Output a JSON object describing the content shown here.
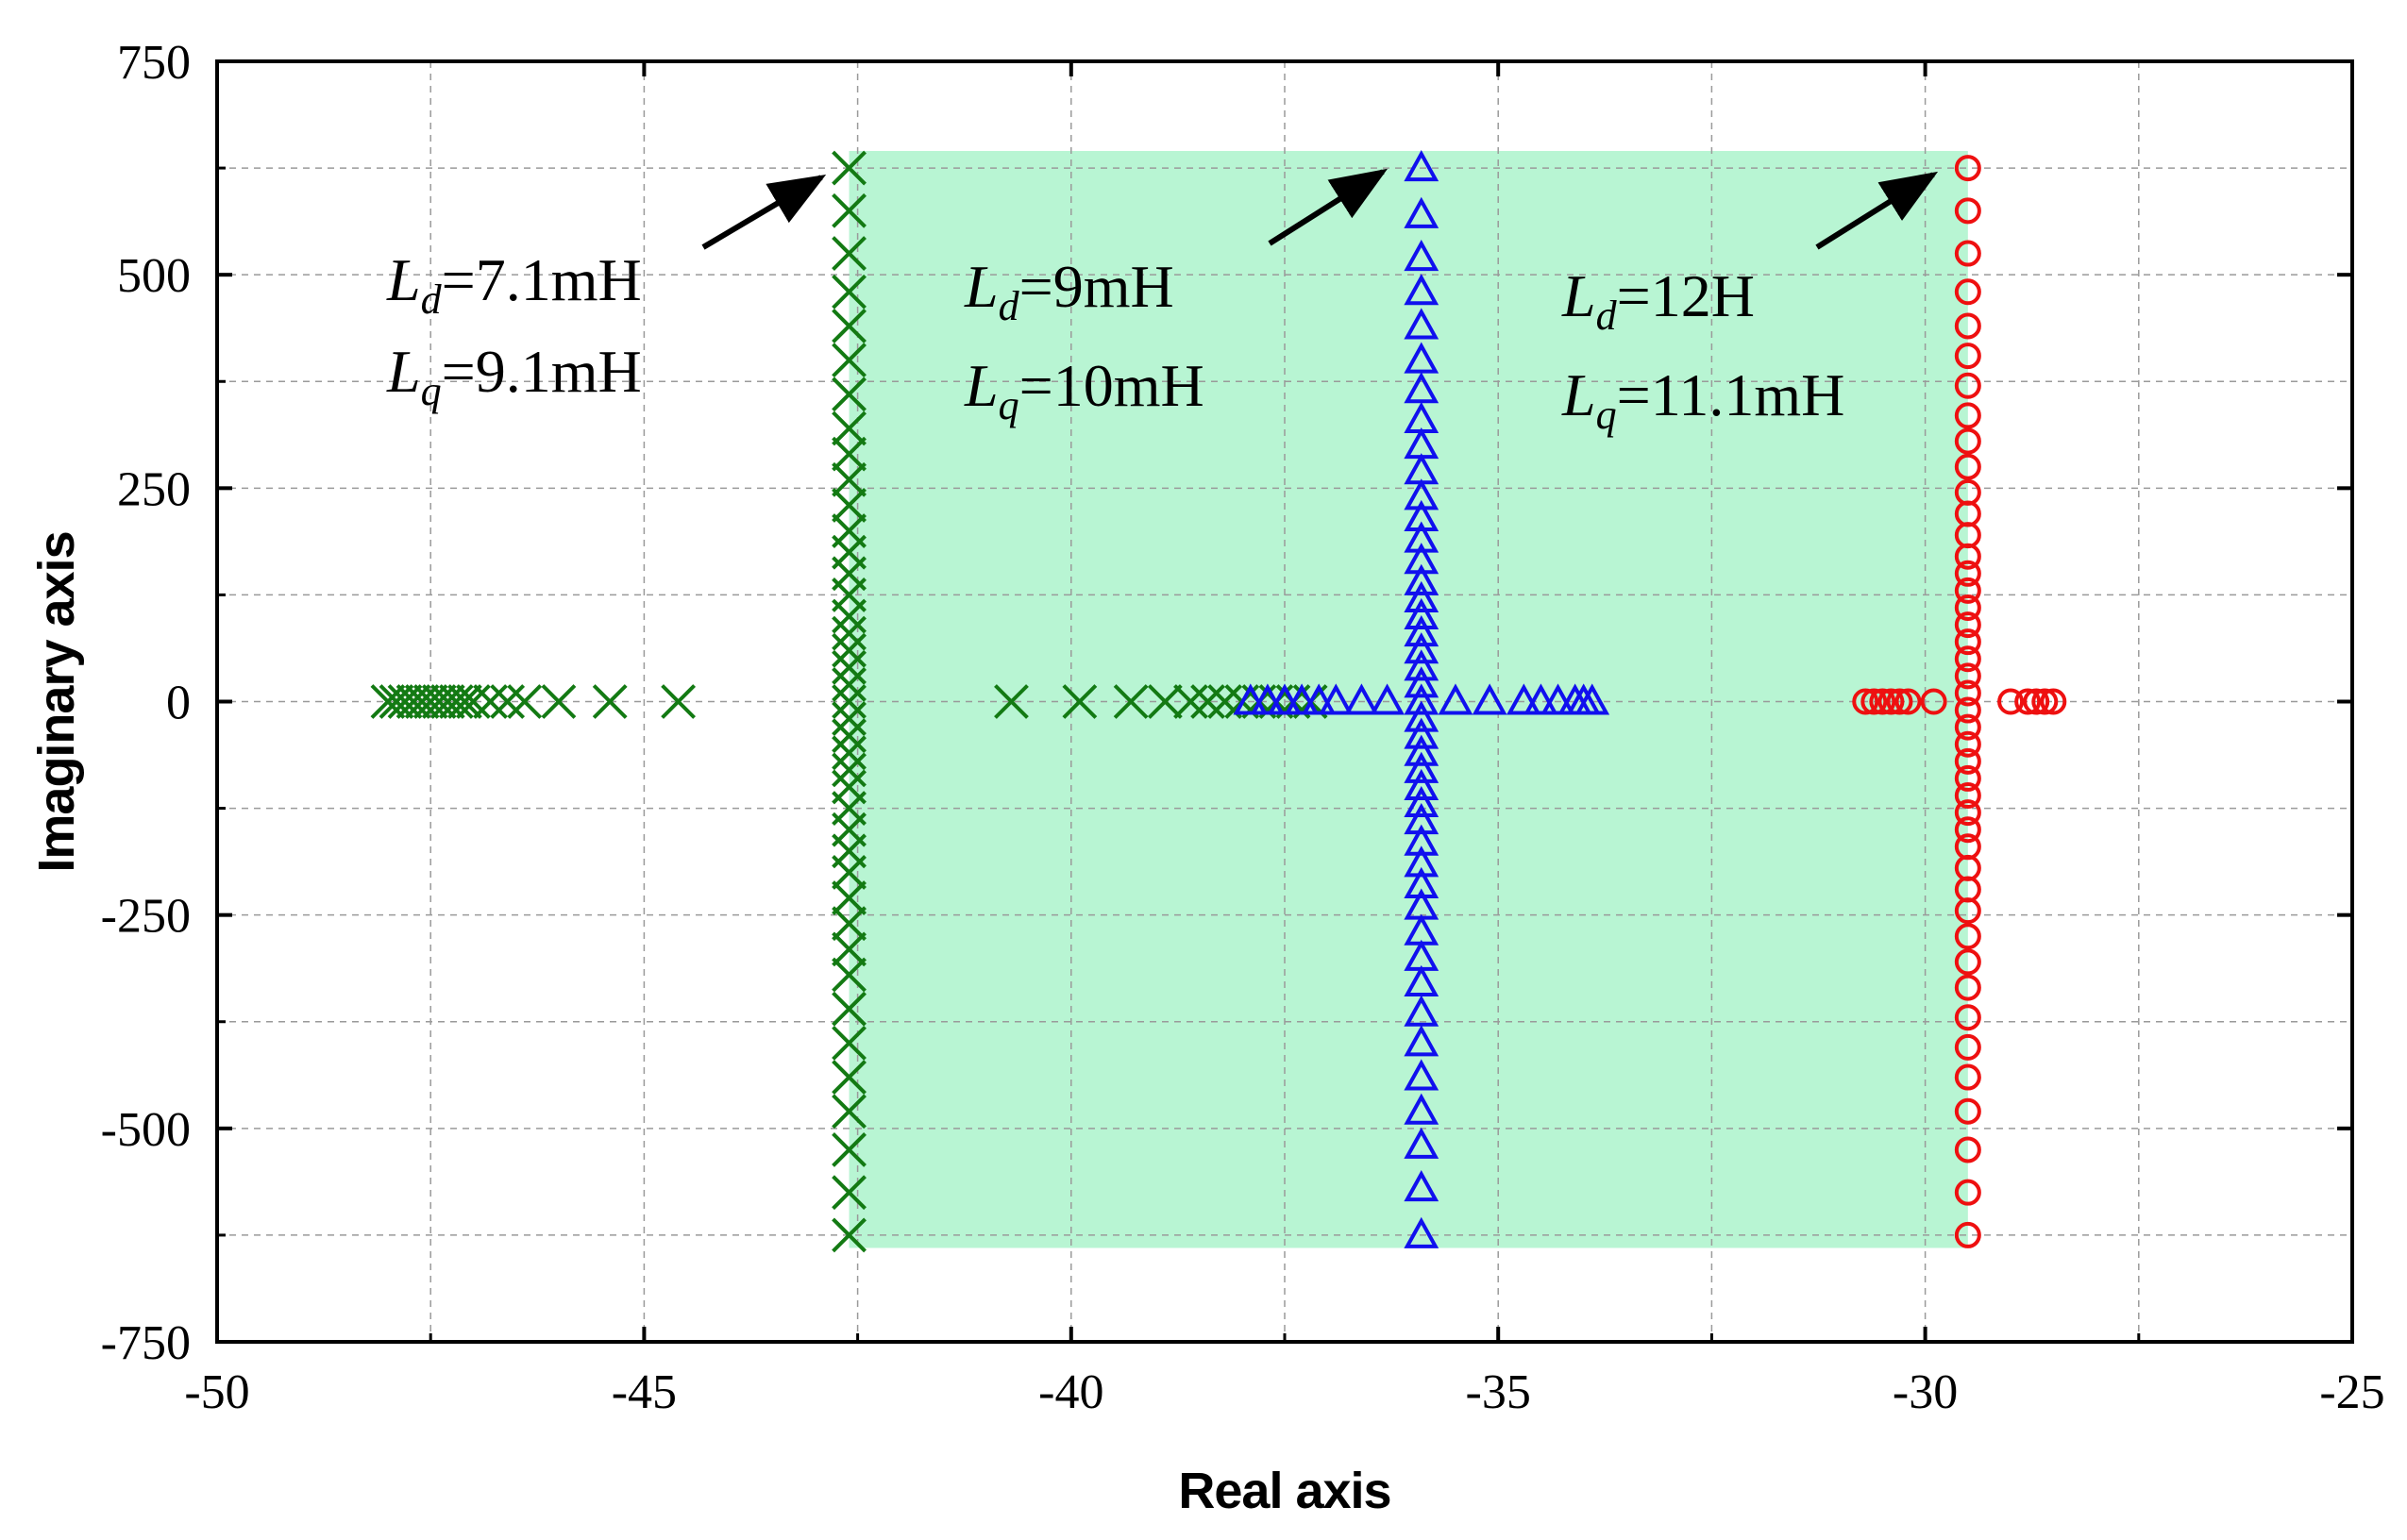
{
  "chart_data": {
    "type": "scatter",
    "title": "",
    "xlabel": "Real axis",
    "ylabel": "Imaginary axis",
    "xlim": [
      -50,
      -25
    ],
    "ylim": [
      -750,
      750
    ],
    "xticks": [
      -50,
      -45,
      -40,
      -35,
      -30,
      -25
    ],
    "xtick_labels": [
      "-50",
      "-45",
      "-40",
      "-35",
      "-30",
      "-25"
    ],
    "yticks": [
      -750,
      -500,
      -250,
      0,
      250,
      500,
      750
    ],
    "ytick_labels": [
      "-750",
      "-500",
      "-250",
      "0",
      "250",
      "500",
      "750"
    ],
    "grid": true,
    "shaded_region": {
      "x": [
        -42.6,
        -29.5
      ],
      "y": [
        -640,
        645
      ],
      "color": "#b8f5d3"
    },
    "series": [
      {
        "name": "Ld=7.1mH, Lq=9.1mH",
        "marker": "x",
        "color": "#137a13",
        "real_axis_points": [
          -48.0,
          -47.9,
          -47.8,
          -47.7,
          -47.6,
          -47.5,
          -47.4,
          -47.3,
          -47.2,
          -47.1,
          -47.0,
          -46.8,
          -46.6,
          -46.4,
          -46.0,
          -45.4,
          -44.6,
          -40.7,
          -39.9,
          -39.3,
          -38.9,
          -38.6,
          -38.4,
          -38.2,
          -38.0,
          -37.8,
          -37.6,
          -37.4,
          -37.2
        ],
        "vertical_branch": {
          "real": -42.6,
          "imag": [
            -625,
            -575,
            -525,
            -480,
            -440,
            -400,
            -360,
            -320,
            -290,
            -260,
            -230,
            -200,
            -175,
            -150,
            -125,
            -100,
            -80,
            -60,
            -40,
            -20,
            0,
            20,
            40,
            60,
            80,
            100,
            125,
            150,
            175,
            200,
            230,
            260,
            290,
            320,
            360,
            400,
            440,
            480,
            525,
            575,
            625
          ]
        }
      },
      {
        "name": "Ld=9mH, Lq=10mH",
        "marker": "triangle",
        "color": "#1010ee",
        "real_axis_points": [
          -37.9,
          -37.7,
          -37.5,
          -37.3,
          -37.1,
          -36.9,
          -36.6,
          -36.3,
          -35.5,
          -35.1,
          -34.7,
          -34.5,
          -34.3,
          -34.1,
          -34.0,
          -33.9
        ],
        "vertical_branch": {
          "real": -35.9,
          "imag": [
            -625,
            -570,
            -520,
            -480,
            -440,
            -400,
            -365,
            -330,
            -300,
            -270,
            -240,
            -215,
            -190,
            -165,
            -140,
            -120,
            -100,
            -80,
            -60,
            -40,
            -20,
            0,
            20,
            40,
            60,
            80,
            100,
            120,
            140,
            165,
            190,
            215,
            240,
            270,
            300,
            330,
            365,
            400,
            440,
            480,
            520,
            570,
            625
          ]
        }
      },
      {
        "name": "Ld=12H, Lq=11.1mH",
        "marker": "circle",
        "color": "#ee1010",
        "real_axis_points": [
          -30.7,
          -30.6,
          -30.5,
          -30.4,
          -30.3,
          -30.2,
          -29.9,
          -29.0,
          -28.8,
          -28.7,
          -28.6,
          -28.5
        ],
        "vertical_branch": {
          "real": -29.5,
          "imag": [
            -625,
            -575,
            -525,
            -480,
            -440,
            -405,
            -370,
            -335,
            -305,
            -275,
            -245,
            -220,
            -195,
            -170,
            -150,
            -130,
            -110,
            -90,
            -70,
            -50,
            -30,
            -10,
            10,
            30,
            50,
            70,
            90,
            110,
            130,
            150,
            170,
            195,
            220,
            245,
            275,
            305,
            335,
            370,
            405,
            440,
            480,
            525,
            575,
            625
          ]
        }
      }
    ],
    "annotations": [
      {
        "ld_sym": "L",
        "ld_sub": "d",
        "ld_val": "=7.1mH",
        "lq_sym": "L",
        "lq_sub": "q",
        "lq_val": "=9.1mH"
      },
      {
        "ld_sym": "L",
        "ld_sub": "d",
        "ld_val": "=9mH",
        "lq_sym": "L",
        "lq_sub": "q",
        "lq_val": "=10mH"
      },
      {
        "ld_sym": "L",
        "ld_sub": "d",
        "ld_val": "=12H",
        "lq_sym": "L",
        "lq_sub": "q",
        "lq_val": "=11.1mH"
      }
    ]
  }
}
